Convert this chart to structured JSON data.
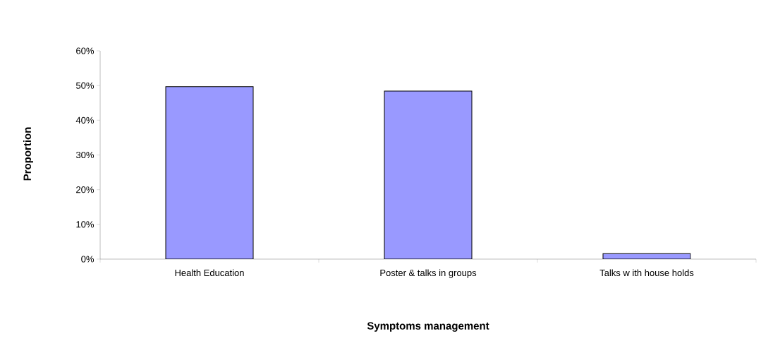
{
  "chart_data": {
    "type": "bar",
    "xlabel": "Symptoms management",
    "ylabel": "Proportion",
    "categories": [
      "Health Education",
      "Poster & talks in groups",
      "Talks w ith house holds"
    ],
    "values": [
      49.7,
      48.4,
      1.6
    ],
    "color": "#9999ff",
    "ylim": [
      0,
      60
    ],
    "yticks": [
      {
        "value": 0,
        "label": "0%"
      },
      {
        "value": 10,
        "label": "10%"
      },
      {
        "value": 20,
        "label": "20%"
      },
      {
        "value": 30,
        "label": "30%"
      },
      {
        "value": 40,
        "label": "40%"
      },
      {
        "value": 50,
        "label": "50%"
      },
      {
        "value": 60,
        "label": "60%"
      }
    ],
    "grid": false
  }
}
